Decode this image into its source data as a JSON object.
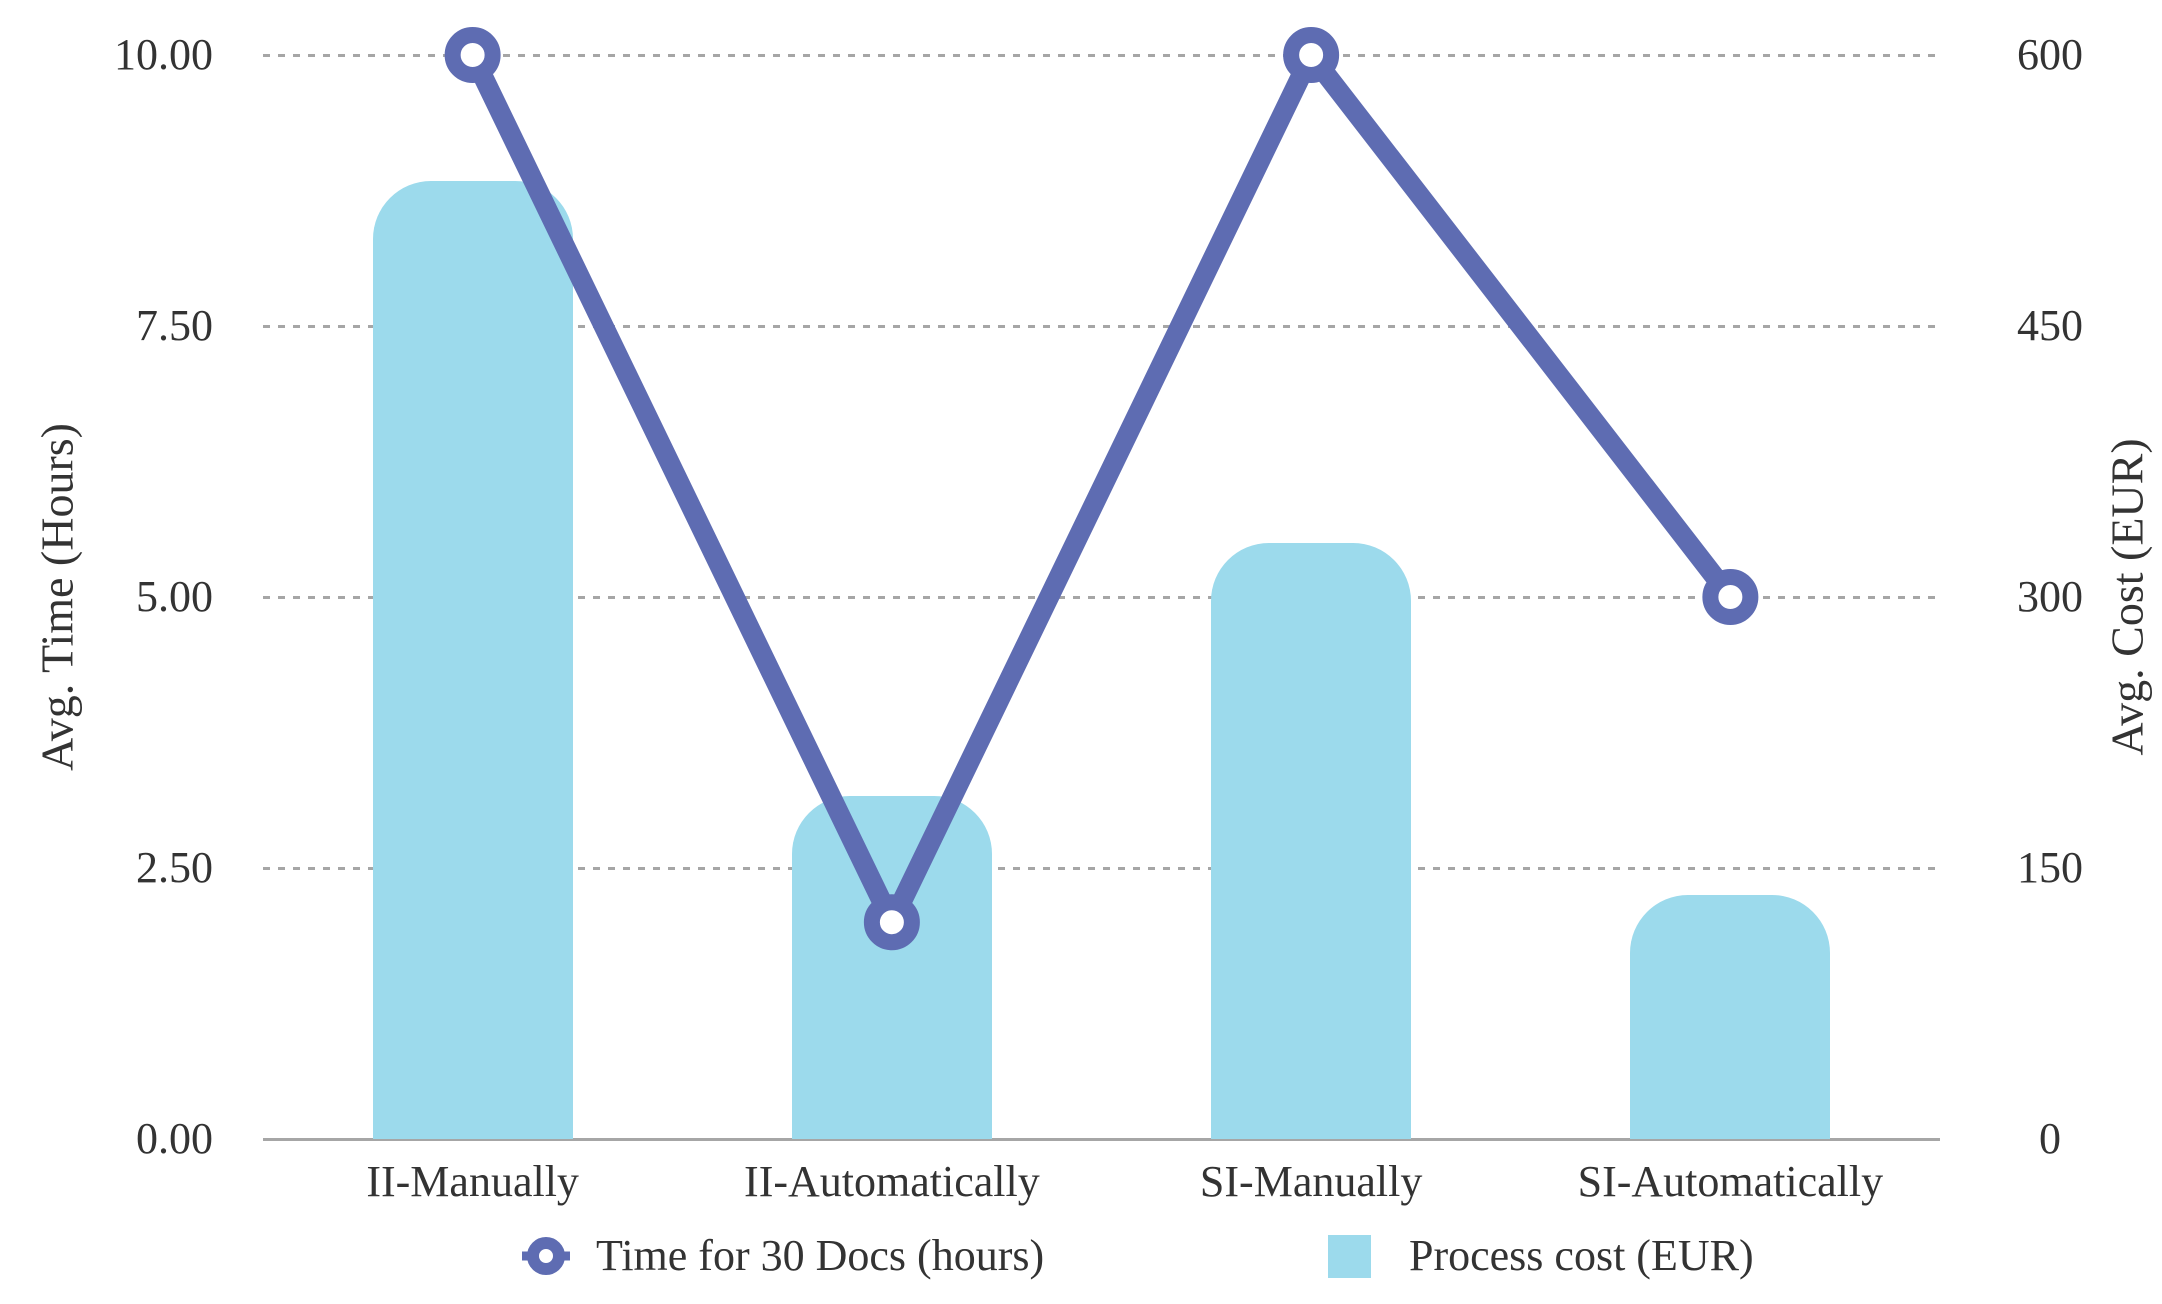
{
  "chart_data": {
    "type": "combo",
    "title": "",
    "categories": [
      "II-Manually",
      "II-Automatically",
      "SI-Manually",
      "SI-Automatically"
    ],
    "series": [
      {
        "name": "Time for 30 Docs (hours)",
        "type": "line",
        "yaxis": "left",
        "values": [
          10.0,
          2.0,
          10.0,
          5.0
        ]
      },
      {
        "name": "Process cost (EUR)",
        "type": "bar",
        "yaxis": "right",
        "values": [
          530,
          190,
          330,
          135
        ]
      }
    ],
    "left_axis": {
      "title": "Avg. Time (Hours)",
      "ticks": [
        "10.00",
        "7.50",
        "5.00",
        "2.50",
        "0.00"
      ],
      "range": [
        0,
        10
      ]
    },
    "right_axis": {
      "title": "Avg. Cost (EUR)",
      "ticks": [
        "600",
        "450",
        "300",
        "150",
        "0"
      ],
      "range": [
        0,
        600
      ]
    },
    "grid": {
      "horizontal": true,
      "style": "dotted"
    },
    "legend": {
      "position": "bottom",
      "entries": [
        "Time for 30 Docs (hours)",
        "Process cost (EUR)"
      ]
    }
  },
  "colors": {
    "bar": "#9cdaec",
    "line": "#5e6cb2",
    "grid": "#a6a6a6",
    "axis": "#a6a6a6",
    "text": "#333333",
    "marker_fill": "#ffffff"
  }
}
